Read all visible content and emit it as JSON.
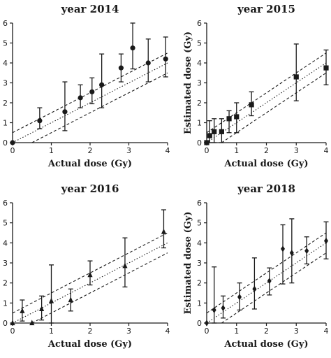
{
  "chart_data": [
    {
      "type": "scatter",
      "title": "year 2014",
      "xlabel": "Actual dose (Gy)",
      "ylabel": "Estimated dose (Gy)",
      "xlim": [
        0,
        4
      ],
      "ylim": [
        0,
        6
      ],
      "xticks": [
        "0",
        "1",
        "2",
        "3",
        "4"
      ],
      "yticks": [
        "0",
        "1",
        "2",
        "3",
        "4",
        "5",
        "6"
      ],
      "marker": "circle",
      "reference_lines": [
        "y = x (dotted)",
        "y = x + 0.5 (dashed)",
        "y = x - 0.5 (dashed)"
      ],
      "grid": false,
      "points": [
        {
          "x": 0.0,
          "y": 0.0,
          "lo": 0.0,
          "hi": 0.0
        },
        {
          "x": 0.7,
          "y": 1.1,
          "lo": 0.7,
          "hi": 1.75
        },
        {
          "x": 1.35,
          "y": 1.55,
          "lo": 0.6,
          "hi": 3.05
        },
        {
          "x": 1.75,
          "y": 2.25,
          "lo": 1.75,
          "hi": 2.9
        },
        {
          "x": 2.05,
          "y": 2.55,
          "lo": 1.95,
          "hi": 3.25
        },
        {
          "x": 2.3,
          "y": 2.9,
          "lo": 1.75,
          "hi": 4.45
        },
        {
          "x": 2.8,
          "y": 3.75,
          "lo": 3.05,
          "hi": 4.45
        },
        {
          "x": 3.1,
          "y": 4.75,
          "lo": 3.7,
          "hi": 6.0
        },
        {
          "x": 3.5,
          "y": 4.0,
          "lo": 3.05,
          "hi": 5.2
        },
        {
          "x": 3.95,
          "y": 4.2,
          "lo": 3.3,
          "hi": 5.3
        }
      ]
    },
    {
      "type": "scatter",
      "title": "year 2015",
      "xlabel": "Actual dose (Gy)",
      "ylabel": "Estimated dose (Gy)",
      "xlim": [
        0,
        4
      ],
      "ylim": [
        0,
        6
      ],
      "xticks": [
        "0",
        "1",
        "2",
        "3",
        "4"
      ],
      "yticks": [
        "0",
        "1",
        "2",
        "3",
        "4",
        "5",
        "6"
      ],
      "marker": "square",
      "reference_lines": [
        "y = x (dotted)",
        "y = x + 0.5 (dashed)",
        "y = x - 0.5 (dashed)"
      ],
      "grid": false,
      "points": [
        {
          "x": 0.0,
          "y": 0.0,
          "lo": 0.0,
          "hi": 0.0
        },
        {
          "x": 0.1,
          "y": 0.35,
          "lo": 0.0,
          "hi": 1.1
        },
        {
          "x": 0.25,
          "y": 0.55,
          "lo": 0.0,
          "hi": 1.2
        },
        {
          "x": 0.5,
          "y": 0.55,
          "lo": 0.0,
          "hi": 1.2
        },
        {
          "x": 0.75,
          "y": 1.2,
          "lo": 0.5,
          "hi": 1.6
        },
        {
          "x": 1.0,
          "y": 1.3,
          "lo": 0.5,
          "hi": 2.0
        },
        {
          "x": 1.5,
          "y": 1.9,
          "lo": 1.35,
          "hi": 2.55
        },
        {
          "x": 3.0,
          "y": 3.3,
          "lo": 2.1,
          "hi": 4.95
        },
        {
          "x": 4.0,
          "y": 3.75,
          "lo": 2.9,
          "hi": 4.65
        }
      ]
    },
    {
      "type": "scatter",
      "title": "year 2016",
      "xlabel": "Actual dose (Gy)",
      "ylabel": "Estimated dose (Gy)",
      "xlim": [
        0,
        4
      ],
      "ylim": [
        0,
        6
      ],
      "xticks": [
        "0",
        "1",
        "2",
        "3",
        "4"
      ],
      "yticks": [
        "0",
        "1",
        "2",
        "3",
        "4",
        "5",
        "6"
      ],
      "marker": "triangle",
      "reference_lines": [
        "y = x (dotted)",
        "y = x + 0.5 (dashed)",
        "y = x - 0.5 (dashed)"
      ],
      "grid": false,
      "points": [
        {
          "x": 0.0,
          "y": 0.0,
          "lo": 0.0,
          "hi": 0.0
        },
        {
          "x": 0.25,
          "y": 0.6,
          "lo": 0.1,
          "hi": 1.15
        },
        {
          "x": 0.5,
          "y": 0.0,
          "lo": 0.0,
          "hi": 0.0
        },
        {
          "x": 0.75,
          "y": 0.7,
          "lo": 0.15,
          "hi": 1.35
        },
        {
          "x": 1.0,
          "y": 1.1,
          "lo": 0.0,
          "hi": 2.9
        },
        {
          "x": 1.5,
          "y": 1.15,
          "lo": 0.6,
          "hi": 1.7
        },
        {
          "x": 2.0,
          "y": 2.4,
          "lo": 1.9,
          "hi": 3.1
        },
        {
          "x": 2.9,
          "y": 2.85,
          "lo": 1.8,
          "hi": 4.25
        },
        {
          "x": 3.9,
          "y": 4.55,
          "lo": 3.75,
          "hi": 5.65
        }
      ]
    },
    {
      "type": "scatter",
      "title": "year 2018",
      "xlabel": "Actual dose (Gy)",
      "ylabel": "Estimated dose (Gy)",
      "xlim": [
        0,
        4
      ],
      "ylim": [
        0,
        6
      ],
      "xticks": [
        "0",
        "1",
        "2",
        "3",
        "4"
      ],
      "yticks": [
        "0",
        "1",
        "2",
        "3",
        "4",
        "5",
        "6"
      ],
      "marker": "diamond",
      "reference_lines": [
        "y = x (dotted)",
        "y = x + 0.5 (dashed)",
        "y = x - 0.5 (dashed)"
      ],
      "grid": false,
      "points": [
        {
          "x": 0.0,
          "y": 0.0,
          "lo": 0.0,
          "hi": 0.0
        },
        {
          "x": 0.25,
          "y": 0.65,
          "lo": 0.0,
          "hi": 2.8
        },
        {
          "x": 0.55,
          "y": 0.75,
          "lo": 0.25,
          "hi": 1.35
        },
        {
          "x": 1.1,
          "y": 1.3,
          "lo": 0.65,
          "hi": 2.0
        },
        {
          "x": 1.6,
          "y": 1.7,
          "lo": 0.7,
          "hi": 3.25
        },
        {
          "x": 2.1,
          "y": 2.1,
          "lo": 1.4,
          "hi": 2.75
        },
        {
          "x": 2.55,
          "y": 3.7,
          "lo": 1.95,
          "hi": 4.9
        },
        {
          "x": 2.85,
          "y": 3.5,
          "lo": 2.0,
          "hi": 5.2
        },
        {
          "x": 3.35,
          "y": 3.6,
          "lo": 2.95,
          "hi": 4.3
        },
        {
          "x": 4.0,
          "y": 4.1,
          "lo": 3.2,
          "hi": 5.05
        }
      ]
    }
  ]
}
